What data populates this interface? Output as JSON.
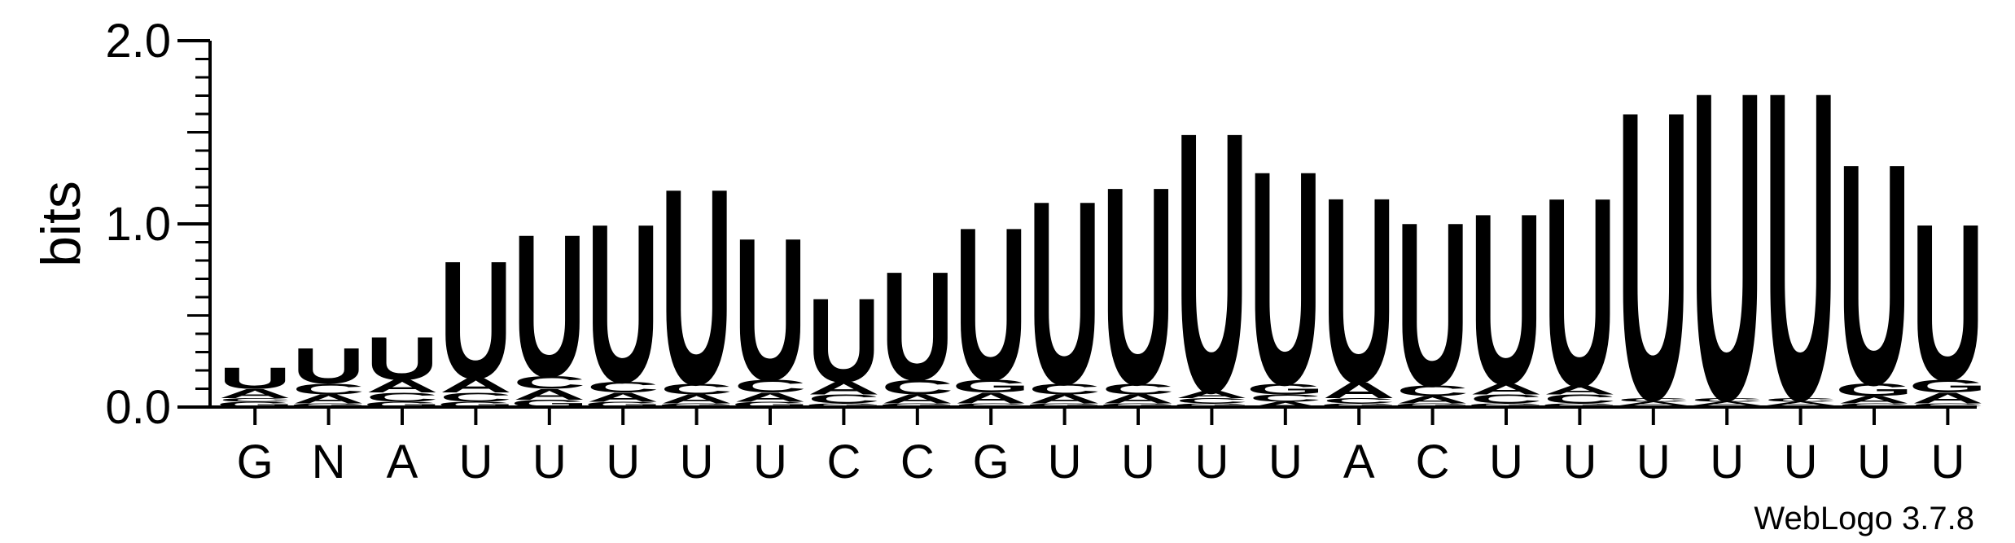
{
  "chart_data": {
    "type": "sequence-logo",
    "ylabel": "bits",
    "ylim": [
      0,
      2.0
    ],
    "yticks": [
      "0.0",
      "1.0",
      "2.0"
    ],
    "ytick_values": [
      0,
      1,
      2
    ],
    "footer": "WebLogo 3.7.8",
    "colors": {
      "U": "#ff8c00",
      "A": "#ff8c00",
      "C": "#0000ff",
      "G": "#0000ff",
      "N": "#000000"
    },
    "columns": [
      {
        "label": "G",
        "stack": [
          {
            "letter": "G",
            "bits": 0.03
          },
          {
            "letter": "C",
            "bits": 0.02
          },
          {
            "letter": "A",
            "bits": 0.05
          },
          {
            "letter": "U",
            "bits": 0.12
          }
        ]
      },
      {
        "label": "N",
        "stack": [
          {
            "letter": "G",
            "bits": 0.02
          },
          {
            "letter": "A",
            "bits": 0.05
          },
          {
            "letter": "C",
            "bits": 0.06
          },
          {
            "letter": "U",
            "bits": 0.2
          }
        ]
      },
      {
        "label": "A",
        "stack": [
          {
            "letter": "G",
            "bits": 0.03
          },
          {
            "letter": "C",
            "bits": 0.05
          },
          {
            "letter": "A",
            "bits": 0.07
          },
          {
            "letter": "U",
            "bits": 0.24
          }
        ]
      },
      {
        "label": "U",
        "stack": [
          {
            "letter": "G",
            "bits": 0.03
          },
          {
            "letter": "C",
            "bits": 0.05
          },
          {
            "letter": "A",
            "bits": 0.08
          },
          {
            "letter": "U",
            "bits": 0.66
          }
        ]
      },
      {
        "label": "U",
        "stack": [
          {
            "letter": "G",
            "bits": 0.04
          },
          {
            "letter": "A",
            "bits": 0.06
          },
          {
            "letter": "C",
            "bits": 0.07
          },
          {
            "letter": "U",
            "bits": 0.8
          }
        ]
      },
      {
        "label": "U",
        "stack": [
          {
            "letter": "G",
            "bits": 0.03
          },
          {
            "letter": "A",
            "bits": 0.05
          },
          {
            "letter": "C",
            "bits": 0.06
          },
          {
            "letter": "U",
            "bits": 0.89
          }
        ]
      },
      {
        "label": "U",
        "stack": [
          {
            "letter": "G",
            "bits": 0.02
          },
          {
            "letter": "A",
            "bits": 0.05
          },
          {
            "letter": "C",
            "bits": 0.06
          },
          {
            "letter": "U",
            "bits": 1.1
          }
        ]
      },
      {
        "label": "U",
        "stack": [
          {
            "letter": "G",
            "bits": 0.03
          },
          {
            "letter": "A",
            "bits": 0.05
          },
          {
            "letter": "C",
            "bits": 0.07
          },
          {
            "letter": "U",
            "bits": 0.8
          }
        ]
      },
      {
        "label": "C",
        "stack": [
          {
            "letter": "G",
            "bits": 0.02
          },
          {
            "letter": "C",
            "bits": 0.05
          },
          {
            "letter": "A",
            "bits": 0.07
          },
          {
            "letter": "U",
            "bits": 0.47
          }
        ]
      },
      {
        "label": "C",
        "stack": [
          {
            "letter": "G",
            "bits": 0.02
          },
          {
            "letter": "A",
            "bits": 0.05
          },
          {
            "letter": "C",
            "bits": 0.08
          },
          {
            "letter": "U",
            "bits": 0.61
          }
        ]
      },
      {
        "label": "G",
        "stack": [
          {
            "letter": "C",
            "bits": 0.02
          },
          {
            "letter": "A",
            "bits": 0.06
          },
          {
            "letter": "G",
            "bits": 0.07
          },
          {
            "letter": "U",
            "bits": 0.86
          }
        ]
      },
      {
        "label": "U",
        "stack": [
          {
            "letter": "G",
            "bits": 0.02
          },
          {
            "letter": "A",
            "bits": 0.05
          },
          {
            "letter": "C",
            "bits": 0.06
          },
          {
            "letter": "U",
            "bits": 1.03
          }
        ]
      },
      {
        "label": "U",
        "stack": [
          {
            "letter": "G",
            "bits": 0.02
          },
          {
            "letter": "A",
            "bits": 0.05
          },
          {
            "letter": "C",
            "bits": 0.06
          },
          {
            "letter": "U",
            "bits": 1.11
          }
        ]
      },
      {
        "label": "U",
        "stack": [
          {
            "letter": "G",
            "bits": 0.02
          },
          {
            "letter": "C",
            "bits": 0.03
          },
          {
            "letter": "A",
            "bits": 0.04
          },
          {
            "letter": "U",
            "bits": 1.46
          }
        ]
      },
      {
        "label": "U",
        "stack": [
          {
            "letter": "A",
            "bits": 0.03
          },
          {
            "letter": "C",
            "bits": 0.04
          },
          {
            "letter": "G",
            "bits": 0.06
          },
          {
            "letter": "U",
            "bits": 1.2
          }
        ]
      },
      {
        "label": "A",
        "stack": [
          {
            "letter": "G",
            "bits": 0.02
          },
          {
            "letter": "C",
            "bits": 0.03
          },
          {
            "letter": "A",
            "bits": 0.09
          },
          {
            "letter": "U",
            "bits": 1.04
          }
        ]
      },
      {
        "label": "C",
        "stack": [
          {
            "letter": "G",
            "bits": 0.02
          },
          {
            "letter": "A",
            "bits": 0.04
          },
          {
            "letter": "C",
            "bits": 0.06
          },
          {
            "letter": "U",
            "bits": 0.92
          }
        ]
      },
      {
        "label": "U",
        "stack": [
          {
            "letter": "G",
            "bits": 0.02
          },
          {
            "letter": "C",
            "bits": 0.05
          },
          {
            "letter": "A",
            "bits": 0.06
          },
          {
            "letter": "U",
            "bits": 0.96
          }
        ]
      },
      {
        "label": "U",
        "stack": [
          {
            "letter": "G",
            "bits": 0.02
          },
          {
            "letter": "C",
            "bits": 0.05
          },
          {
            "letter": "A",
            "bits": 0.05
          },
          {
            "letter": "U",
            "bits": 1.06
          }
        ]
      },
      {
        "label": "U",
        "stack": [
          {
            "letter": "G",
            "bits": 0.01
          },
          {
            "letter": "A",
            "bits": 0.02
          },
          {
            "letter": "C",
            "bits": 0.02
          },
          {
            "letter": "U",
            "bits": 1.62
          }
        ]
      },
      {
        "label": "U",
        "stack": [
          {
            "letter": "G",
            "bits": 0.01
          },
          {
            "letter": "A",
            "bits": 0.02
          },
          {
            "letter": "C",
            "bits": 0.02
          },
          {
            "letter": "U",
            "bits": 1.73
          }
        ]
      },
      {
        "label": "U",
        "stack": [
          {
            "letter": "G",
            "bits": 0.01
          },
          {
            "letter": "A",
            "bits": 0.02
          },
          {
            "letter": "C",
            "bits": 0.02
          },
          {
            "letter": "U",
            "bits": 1.73
          }
        ]
      },
      {
        "label": "U",
        "stack": [
          {
            "letter": "C",
            "bits": 0.02
          },
          {
            "letter": "A",
            "bits": 0.04
          },
          {
            "letter": "G",
            "bits": 0.07
          },
          {
            "letter": "U",
            "bits": 1.24
          }
        ]
      },
      {
        "label": "U",
        "stack": [
          {
            "letter": "C",
            "bits": 0.02
          },
          {
            "letter": "A",
            "bits": 0.06
          },
          {
            "letter": "G",
            "bits": 0.07
          },
          {
            "letter": "U",
            "bits": 0.88
          }
        ]
      }
    ]
  }
}
